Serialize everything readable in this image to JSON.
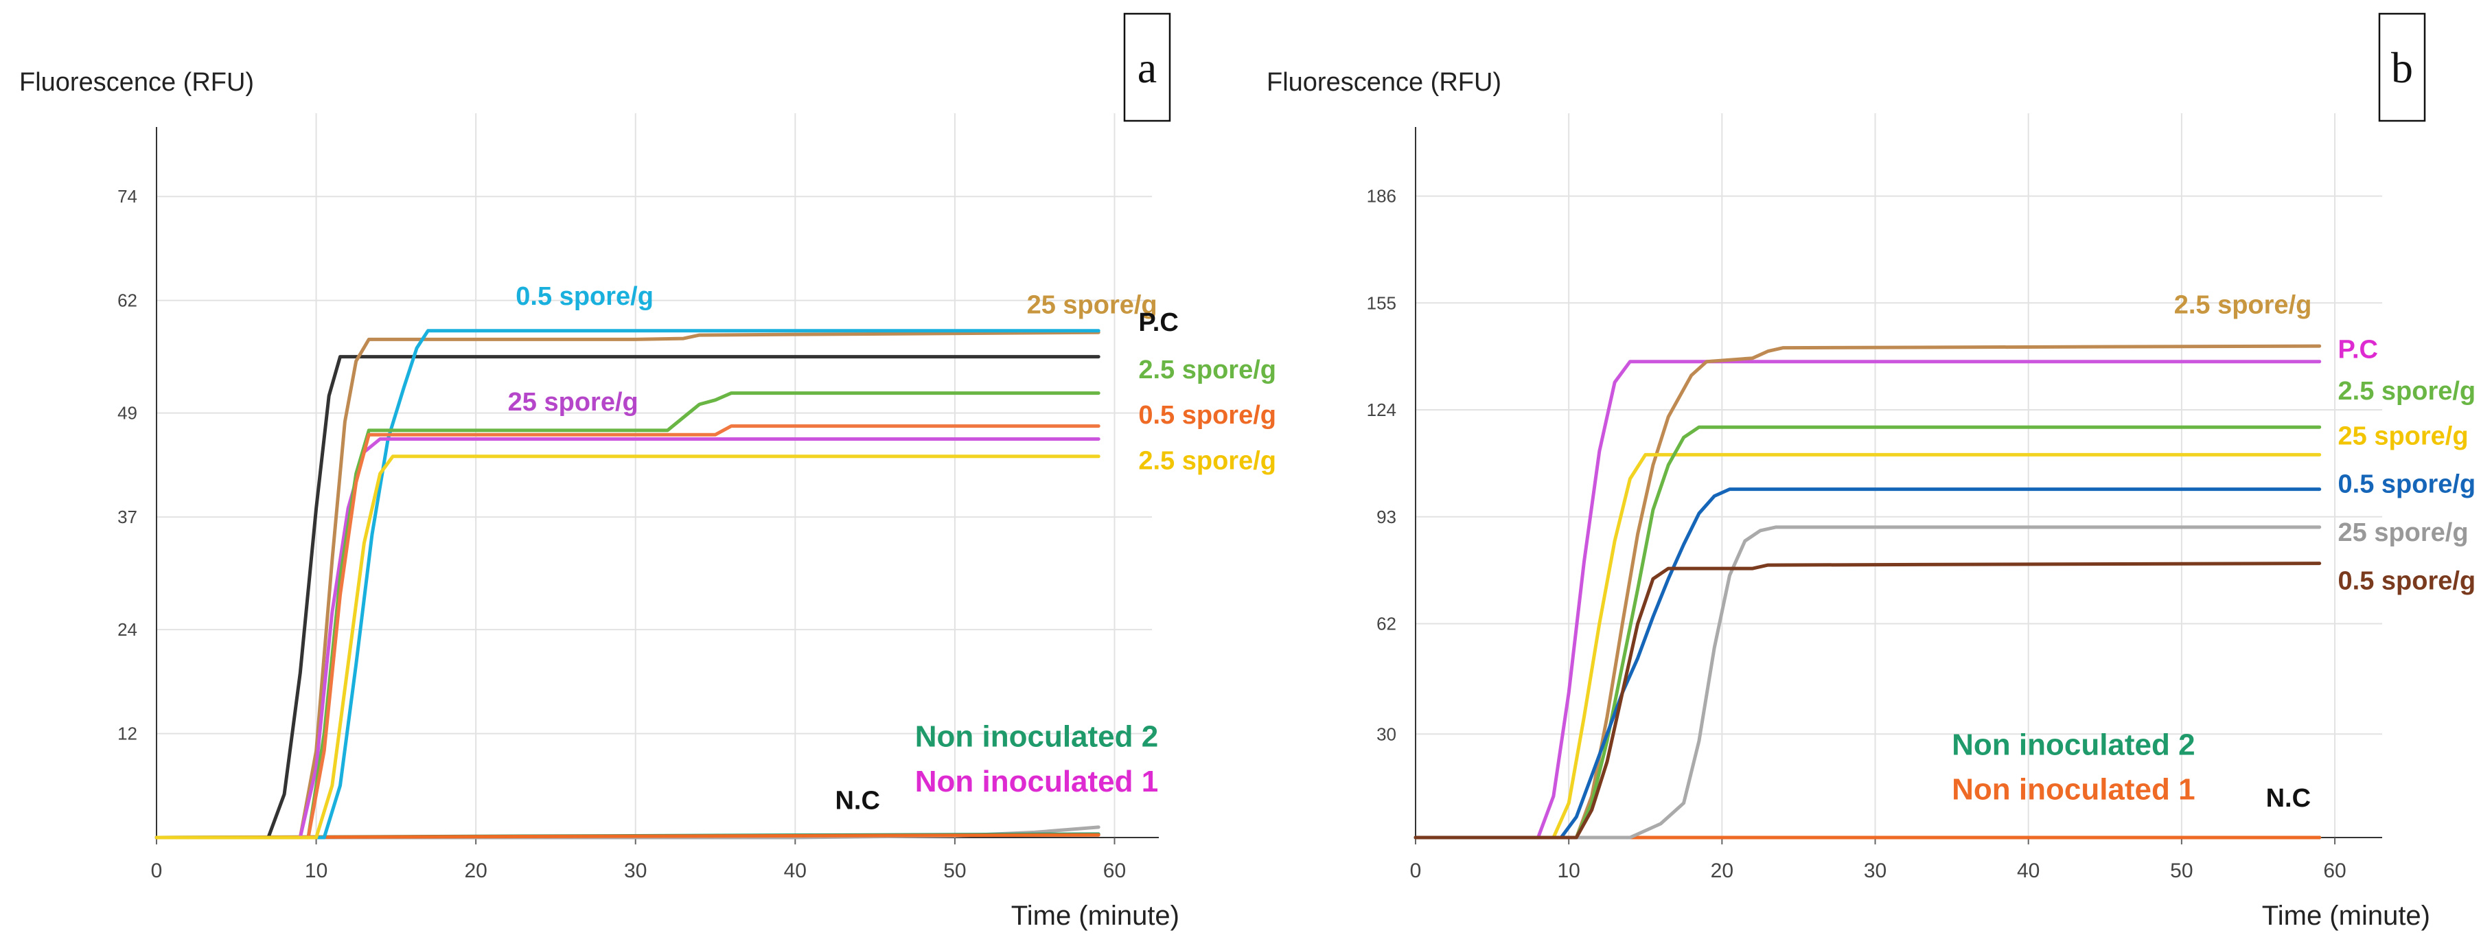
{
  "chart_data": [
    {
      "id": "a",
      "type": "line",
      "panel_label": "a",
      "ylabel": "Fluorescence (RFU)",
      "xlabel": "Time (minute)",
      "xlim": [
        0,
        62
      ],
      "ylim": [
        0,
        84
      ],
      "xticks": [
        0,
        10,
        20,
        30,
        40,
        50,
        60
      ],
      "yticks": [
        12,
        24,
        37,
        49,
        62,
        74
      ],
      "grid": true,
      "series": [
        {
          "name": "N.C",
          "color": "#aaaaaa",
          "points": [
            [
              0,
              0
            ],
            [
              40,
              0
            ],
            [
              50,
              0.2
            ],
            [
              55,
              0.6
            ],
            [
              59,
              1.2
            ]
          ]
        },
        {
          "name": "Non inoculated 2",
          "color": "#1f9a6a",
          "points": [
            [
              0,
              0
            ],
            [
              59,
              0.4
            ]
          ]
        },
        {
          "name": "Non inoculated 1",
          "color": "#ee6a25",
          "points": [
            [
              0,
              0
            ],
            [
              59,
              0.3
            ]
          ]
        },
        {
          "name": "P.C",
          "color": "#333333",
          "points": [
            [
              0,
              0
            ],
            [
              7,
              0
            ],
            [
              8,
              5
            ],
            [
              9,
              19
            ],
            [
              10,
              38
            ],
            [
              10.8,
              51
            ],
            [
              11.5,
              55.5
            ],
            [
              20,
              55.5
            ],
            [
              40,
              55.5
            ],
            [
              59,
              55.5
            ]
          ]
        },
        {
          "name": "25 spore/g",
          "color": "#bf8a52",
          "points": [
            [
              0,
              0
            ],
            [
              9,
              0
            ],
            [
              10,
              10
            ],
            [
              11,
              32
            ],
            [
              11.8,
              48
            ],
            [
              12.5,
              55
            ],
            [
              13.3,
              57.5
            ],
            [
              30,
              57.5
            ],
            [
              33,
              57.6
            ],
            [
              34,
              58
            ],
            [
              59,
              58.3
            ]
          ]
        },
        {
          "name": "0.5 spore/g",
          "color": "#1ab0de",
          "points": [
            [
              0,
              0
            ],
            [
              10.5,
              0
            ],
            [
              11.5,
              6
            ],
            [
              12.5,
              20
            ],
            [
              13.5,
              35
            ],
            [
              14.5,
              46
            ],
            [
              15.5,
              52
            ],
            [
              16.3,
              56.5
            ],
            [
              17,
              58.5
            ],
            [
              59,
              58.5
            ]
          ]
        },
        {
          "name": "25 spore/g",
          "color": "#cc55dd",
          "points": [
            [
              0,
              0
            ],
            [
              9,
              0
            ],
            [
              10,
              8
            ],
            [
              11,
              26
            ],
            [
              12,
              38
            ],
            [
              13,
              44.5
            ],
            [
              14,
              46
            ],
            [
              59,
              46
            ]
          ]
        },
        {
          "name": "2.5 spore/g",
          "color": "#6ab644",
          "points": [
            [
              0,
              0
            ],
            [
              9.5,
              0
            ],
            [
              10.5,
              12
            ],
            [
              11.5,
              30
            ],
            [
              12.5,
              42
            ],
            [
              13.3,
              47
            ],
            [
              32,
              47
            ],
            [
              33,
              48.5
            ],
            [
              34,
              50
            ],
            [
              35,
              50.5
            ],
            [
              36,
              51.3
            ],
            [
              59,
              51.3
            ]
          ]
        },
        {
          "name": "0.5 spore/g",
          "color": "#f07840",
          "points": [
            [
              0,
              0
            ],
            [
              9.5,
              0
            ],
            [
              10.5,
              10
            ],
            [
              11.5,
              28
            ],
            [
              12.5,
              41
            ],
            [
              13.3,
              46.5
            ],
            [
              35,
              46.5
            ],
            [
              36,
              47.5
            ],
            [
              59,
              47.5
            ]
          ]
        },
        {
          "name": "2.5 spore/g",
          "color": "#f2d321",
          "points": [
            [
              0,
              0
            ],
            [
              10,
              0
            ],
            [
              11,
              6
            ],
            [
              12,
              20
            ],
            [
              13,
              34
            ],
            [
              14,
              42
            ],
            [
              14.8,
              44
            ],
            [
              59,
              44
            ]
          ]
        }
      ],
      "annotations": [
        {
          "text": "0.5 spore/g",
          "color": "#1ab0de",
          "x": 22.5,
          "y": 61.5
        },
        {
          "text": "25 spore/g",
          "color": "#c7963e",
          "x": 54.5,
          "y": 60.5
        },
        {
          "text": "P.C",
          "color": "#111111",
          "x": 61.5,
          "y": 58.5
        },
        {
          "text": "25 spore/g",
          "color": "#b545c9",
          "x": 22,
          "y": 49.3
        },
        {
          "text": "2.5 spore/g",
          "color": "#6ab644",
          "x": 61.5,
          "y": 53
        },
        {
          "text": "0.5 spore/g",
          "color": "#ee6a25",
          "x": 61.5,
          "y": 47.8
        },
        {
          "text": "2.5 spore/g",
          "color": "#f2c500",
          "x": 61.5,
          "y": 42.5
        },
        {
          "text": "Non inoculated 2",
          "color": "#1f9a6a",
          "x": 47.5,
          "y": 10.5
        },
        {
          "text": "Non inoculated 1",
          "color": "#dd2bd1",
          "x": 47.5,
          "y": 5.3
        },
        {
          "text": "N.C",
          "color": "#111111",
          "x": 42.5,
          "y": 3.3
        }
      ]
    },
    {
      "id": "b",
      "type": "line",
      "panel_label": "b",
      "ylabel": "Fluorescence (RFU)",
      "xlabel": "Time (minute)",
      "xlim": [
        0,
        63
      ],
      "ylim": [
        0,
        210
      ],
      "xticks": [
        0,
        10,
        20,
        30,
        40,
        50,
        60
      ],
      "yticks": [
        30,
        62,
        93,
        124,
        155,
        186
      ],
      "grid": true,
      "series": [
        {
          "name": "N.C",
          "color": "#aaaaaa",
          "points": [
            [
              0,
              0
            ],
            [
              59,
              0
            ]
          ]
        },
        {
          "name": "Non inoculated 2",
          "color": "#1f9a6a",
          "points": [
            [
              0,
              0
            ],
            [
              59,
              0
            ]
          ]
        },
        {
          "name": "Non inoculated 1",
          "color": "#ee6a25",
          "points": [
            [
              0,
              0
            ],
            [
              59,
              0
            ]
          ]
        },
        {
          "name": "P.C",
          "color": "#cc55dd",
          "points": [
            [
              0,
              0
            ],
            [
              8,
              0
            ],
            [
              9,
              12
            ],
            [
              10,
              42
            ],
            [
              11,
              80
            ],
            [
              12,
              112
            ],
            [
              13,
              132
            ],
            [
              14,
              138
            ],
            [
              59,
              138
            ]
          ]
        },
        {
          "name": "2.5 spore/g",
          "color": "#bf8a52",
          "points": [
            [
              0,
              0
            ],
            [
              10.5,
              0
            ],
            [
              11.5,
              12
            ],
            [
              12.5,
              35
            ],
            [
              13.5,
              62
            ],
            [
              14.5,
              88
            ],
            [
              15.5,
              108
            ],
            [
              16.5,
              122
            ],
            [
              18,
              134
            ],
            [
              19,
              138
            ],
            [
              22,
              139
            ],
            [
              23,
              141
            ],
            [
              24,
              142
            ],
            [
              59,
              142.5
            ]
          ]
        },
        {
          "name": "25 spore/g",
          "color": "#f2d321",
          "points": [
            [
              0,
              0
            ],
            [
              9,
              0
            ],
            [
              10,
              10
            ],
            [
              11,
              35
            ],
            [
              12,
              62
            ],
            [
              13,
              86
            ],
            [
              14,
              104
            ],
            [
              15,
              111
            ],
            [
              59,
              111
            ]
          ]
        },
        {
          "name": "2.5 spore/g",
          "color": "#6ab644",
          "points": [
            [
              0,
              0
            ],
            [
              10.5,
              0
            ],
            [
              11.5,
              10
            ],
            [
              12.5,
              28
            ],
            [
              13.5,
              50
            ],
            [
              14.5,
              72
            ],
            [
              15.5,
              95
            ],
            [
              16.5,
              108
            ],
            [
              17.5,
              116
            ],
            [
              18.5,
              119
            ],
            [
              59,
              119
            ]
          ]
        },
        {
          "name": "0.5 spore/g",
          "color": "#1565b8",
          "points": [
            [
              0,
              0
            ],
            [
              9.5,
              0
            ],
            [
              10.5,
              6
            ],
            [
              11.5,
              18
            ],
            [
              12.5,
              30
            ],
            [
              13.5,
              42
            ],
            [
              14.5,
              52
            ],
            [
              15.5,
              64
            ],
            [
              16.5,
              75
            ],
            [
              17.5,
              85
            ],
            [
              18.5,
              94
            ],
            [
              19.5,
              99
            ],
            [
              20.5,
              101
            ],
            [
              22,
              101
            ],
            [
              59,
              101
            ]
          ]
        },
        {
          "name": "25 spore/g",
          "color": "#aaaaaa",
          "points": [
            [
              0,
              0
            ],
            [
              14,
              0
            ],
            [
              16,
              4
            ],
            [
              17.5,
              10
            ],
            [
              18.5,
              28
            ],
            [
              19.5,
              55
            ],
            [
              20.5,
              76
            ],
            [
              21.5,
              86
            ],
            [
              22.5,
              89
            ],
            [
              23.5,
              90
            ],
            [
              59,
              90
            ]
          ]
        },
        {
          "name": "0.5 spore/g",
          "color": "#7a3a1e",
          "points": [
            [
              0,
              0
            ],
            [
              10.5,
              0
            ],
            [
              11.5,
              8
            ],
            [
              12.5,
              22
            ],
            [
              13.5,
              42
            ],
            [
              14.5,
              62
            ],
            [
              15.5,
              75
            ],
            [
              16.5,
              78
            ],
            [
              22,
              78
            ],
            [
              23,
              79
            ],
            [
              59,
              79.5
            ]
          ]
        }
      ],
      "annotations": [
        {
          "text": "2.5 spore/g",
          "color": "#c7963e",
          "x": 49.5,
          "y": 152
        },
        {
          "text": "P.C",
          "color": "#dd2bd1",
          "x": 60.2,
          "y": 139
        },
        {
          "text": "2.5 spore/g",
          "color": "#6ab644",
          "x": 60.2,
          "y": 127
        },
        {
          "text": "25 spore/g",
          "color": "#f2c500",
          "x": 60.2,
          "y": 114
        },
        {
          "text": "0.5 spore/g",
          "color": "#1565b8",
          "x": 60.2,
          "y": 100
        },
        {
          "text": "25 spore/g",
          "color": "#999999",
          "x": 60.2,
          "y": 86
        },
        {
          "text": "0.5 spore/g",
          "color": "#7a3a1e",
          "x": 60.2,
          "y": 72
        },
        {
          "text": "Non inoculated 2",
          "color": "#1f9a6a",
          "x": 35,
          "y": 24
        },
        {
          "text": "Non inoculated 1",
          "color": "#ee6a25",
          "x": 35,
          "y": 11
        },
        {
          "text": "N.C",
          "color": "#111111",
          "x": 55.5,
          "y": 9
        }
      ]
    }
  ]
}
